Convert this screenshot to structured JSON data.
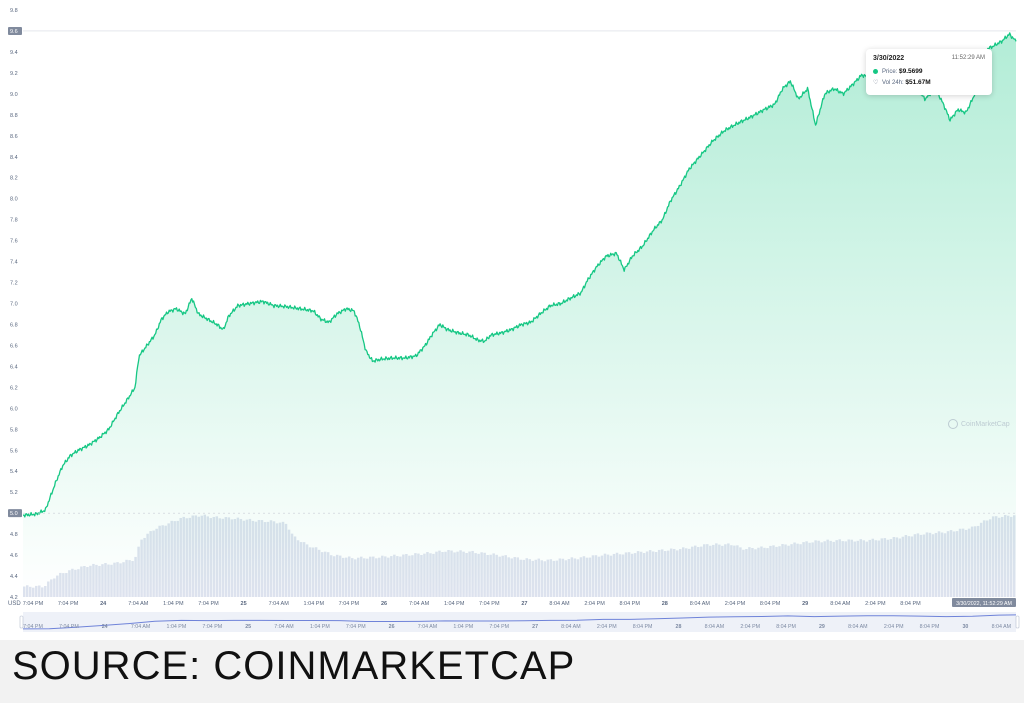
{
  "chart_data": {
    "type": "area",
    "currency_label": "USD",
    "price_axis": {
      "min": 4.2,
      "max": 9.8,
      "ticks": [
        "4.2",
        "4.4",
        "4.6",
        "4.8",
        "5.0",
        "5.2",
        "5.4",
        "5.6",
        "5.8",
        "6.0",
        "6.2",
        "6.4",
        "6.6",
        "6.8",
        "7.0",
        "7.2",
        "7.4",
        "7.6",
        "7.8",
        "8.0",
        "8.2",
        "8.4",
        "8.6",
        "8.8",
        "9.0",
        "9.2",
        "9.4",
        "9.6",
        "9.8"
      ],
      "start_marker": "5.0",
      "current_marker": "9.6"
    },
    "x_ticks": [
      "7:04 PM",
      "7:04 PM",
      "24",
      "7:04 AM",
      "1:04 PM",
      "7:04 PM",
      "25",
      "7:04 AM",
      "1:04 PM",
      "7:04 PM",
      "26",
      "7:04 AM",
      "1:04 PM",
      "7:04 PM",
      "27",
      "8:04 AM",
      "2:04 PM",
      "8:04 PM",
      "28",
      "8:04 AM",
      "2:04 PM",
      "8:04 PM",
      "29",
      "8:04 AM",
      "2:04 PM",
      "8:04 PM"
    ],
    "nav_ticks": [
      "7:04 PM",
      "7:04 PM",
      "24",
      "7:04 AM",
      "1:04 PM",
      "7:04 PM",
      "25",
      "7:04 AM",
      "1:04 PM",
      "7:04 PM",
      "26",
      "7:04 AM",
      "1:04 PM",
      "7:04 PM",
      "27",
      "8:04 AM",
      "2:04 PM",
      "8:04 PM",
      "28",
      "8:04 AM",
      "2:04 PM",
      "8:04 PM",
      "29",
      "8:04 AM",
      "2:04 PM",
      "8:04 PM",
      "30",
      "8:04 AM"
    ],
    "x_end_label": "3/30/2022, 11:52:29 AM",
    "price_series": [
      [
        0,
        4.98
      ],
      [
        1,
        4.99
      ],
      [
        1.7,
        5.03
      ],
      [
        2.5,
        5.3
      ],
      [
        3,
        5.45
      ],
      [
        3.6,
        5.55
      ],
      [
        4.2,
        5.6
      ],
      [
        5,
        5.65
      ],
      [
        5.8,
        5.72
      ],
      [
        6.5,
        5.8
      ],
      [
        7.2,
        5.95
      ],
      [
        8,
        6.1
      ],
      [
        8.5,
        6.2
      ],
      [
        8.8,
        6.5
      ],
      [
        9.4,
        6.6
      ],
      [
        10,
        6.7
      ],
      [
        10.5,
        6.85
      ],
      [
        11,
        6.92
      ],
      [
        11.6,
        6.95
      ],
      [
        12.3,
        6.9
      ],
      [
        12.8,
        7.05
      ],
      [
        13.3,
        6.9
      ],
      [
        14,
        6.85
      ],
      [
        14.7,
        6.8
      ],
      [
        15.2,
        6.75
      ],
      [
        15.6,
        6.88
      ],
      [
        16.3,
        6.98
      ],
      [
        17.2,
        7.0
      ],
      [
        18.2,
        7.02
      ],
      [
        19,
        6.98
      ],
      [
        20,
        6.97
      ],
      [
        21,
        6.95
      ],
      [
        22,
        6.93
      ],
      [
        22.6,
        6.85
      ],
      [
        23.2,
        6.82
      ],
      [
        23.8,
        6.9
      ],
      [
        24.5,
        6.95
      ],
      [
        25.1,
        6.93
      ],
      [
        25.5,
        6.8
      ],
      [
        26,
        6.55
      ],
      [
        26.5,
        6.45
      ],
      [
        27.2,
        6.47
      ],
      [
        28,
        6.48
      ],
      [
        29,
        6.48
      ],
      [
        29.8,
        6.5
      ],
      [
        30.5,
        6.6
      ],
      [
        31,
        6.7
      ],
      [
        31.6,
        6.8
      ],
      [
        32.2,
        6.75
      ],
      [
        33,
        6.72
      ],
      [
        33.8,
        6.7
      ],
      [
        34.5,
        6.65
      ],
      [
        35,
        6.64
      ],
      [
        35.5,
        6.7
      ],
      [
        36.3,
        6.72
      ],
      [
        37,
        6.75
      ],
      [
        37.8,
        6.8
      ],
      [
        38.5,
        6.82
      ],
      [
        39.2,
        6.9
      ],
      [
        40,
        6.98
      ],
      [
        40.8,
        7.0
      ],
      [
        41.5,
        7.05
      ],
      [
        42.3,
        7.1
      ],
      [
        42.8,
        7.22
      ],
      [
        43.5,
        7.35
      ],
      [
        44.2,
        7.45
      ],
      [
        45,
        7.48
      ],
      [
        45.6,
        7.32
      ],
      [
        46.2,
        7.45
      ],
      [
        47,
        7.55
      ],
      [
        47.8,
        7.7
      ],
      [
        48.5,
        7.8
      ],
      [
        49.1,
        7.98
      ],
      [
        49.8,
        8.12
      ],
      [
        50.5,
        8.28
      ],
      [
        51.3,
        8.4
      ],
      [
        52.3,
        8.55
      ],
      [
        53.2,
        8.65
      ],
      [
        54.2,
        8.72
      ],
      [
        55.2,
        8.78
      ],
      [
        56.2,
        8.85
      ],
      [
        57,
        8.9
      ],
      [
        57.6,
        9.05
      ],
      [
        58.2,
        9.12
      ],
      [
        58.8,
        8.95
      ],
      [
        59.5,
        9.05
      ],
      [
        60.1,
        8.7
      ],
      [
        60.8,
        9.0
      ],
      [
        61.5,
        9.05
      ],
      [
        62.2,
        9.0
      ],
      [
        63,
        9.1
      ],
      [
        63.6,
        9.18
      ],
      [
        64.5,
        9.15
      ],
      [
        65.3,
        9.2
      ],
      [
        66.3,
        9.15
      ],
      [
        67,
        9.18
      ],
      [
        67.8,
        9.05
      ],
      [
        68.4,
        8.95
      ],
      [
        69.2,
        9.05
      ],
      [
        69.8,
        8.9
      ],
      [
        70.3,
        8.75
      ],
      [
        70.9,
        8.85
      ],
      [
        71.5,
        8.82
      ],
      [
        72,
        8.95
      ],
      [
        72.5,
        9.1
      ],
      [
        73,
        9.42
      ],
      [
        73.5,
        9.45
      ],
      [
        74.2,
        9.5
      ],
      [
        74.8,
        9.57
      ],
      [
        75.3,
        9.5
      ]
    ],
    "volume_series": [
      [
        0,
        4.3
      ],
      [
        1.6,
        4.3
      ],
      [
        2.5,
        4.4
      ],
      [
        3.5,
        4.45
      ],
      [
        5,
        4.5
      ],
      [
        7,
        4.52
      ],
      [
        8.5,
        4.56
      ],
      [
        9,
        4.75
      ],
      [
        10,
        4.85
      ],
      [
        11,
        4.9
      ],
      [
        12,
        4.95
      ],
      [
        13.5,
        4.98
      ],
      [
        14.5,
        4.96
      ],
      [
        16,
        4.95
      ],
      [
        17.5,
        4.93
      ],
      [
        19,
        4.92
      ],
      [
        20,
        4.9
      ],
      [
        20.5,
        4.78
      ],
      [
        21.5,
        4.7
      ],
      [
        22.5,
        4.65
      ],
      [
        23.5,
        4.6
      ],
      [
        25,
        4.57
      ],
      [
        27,
        4.58
      ],
      [
        29,
        4.6
      ],
      [
        31,
        4.62
      ],
      [
        32,
        4.64
      ],
      [
        34,
        4.63
      ],
      [
        36,
        4.6
      ],
      [
        38,
        4.56
      ],
      [
        40,
        4.55
      ],
      [
        42,
        4.57
      ],
      [
        44,
        4.6
      ],
      [
        46,
        4.62
      ],
      [
        48,
        4.64
      ],
      [
        50,
        4.66
      ],
      [
        52,
        4.7
      ],
      [
        54,
        4.7
      ],
      [
        54.5,
        4.66
      ],
      [
        56,
        4.67
      ],
      [
        58,
        4.7
      ],
      [
        60,
        4.73
      ],
      [
        62,
        4.74
      ],
      [
        64,
        4.74
      ],
      [
        66,
        4.76
      ],
      [
        68,
        4.8
      ],
      [
        70,
        4.82
      ],
      [
        72,
        4.86
      ],
      [
        73.5,
        4.96
      ],
      [
        75.3,
        4.98
      ]
    ],
    "nav_series": [
      [
        0,
        3.0
      ],
      [
        2,
        3.1
      ],
      [
        4,
        3.8
      ],
      [
        6,
        4.6
      ],
      [
        8,
        5.5
      ],
      [
        10,
        6.6
      ],
      [
        12,
        7.0
      ],
      [
        14,
        6.9
      ],
      [
        16,
        7.0
      ],
      [
        18,
        7.0
      ],
      [
        20,
        6.97
      ],
      [
        22,
        6.93
      ],
      [
        24,
        6.9
      ],
      [
        26,
        6.5
      ],
      [
        28,
        6.48
      ],
      [
        30,
        6.55
      ],
      [
        32,
        6.75
      ],
      [
        34,
        6.7
      ],
      [
        36,
        6.72
      ],
      [
        38,
        6.82
      ],
      [
        40,
        6.98
      ],
      [
        42,
        7.1
      ],
      [
        44,
        7.45
      ],
      [
        46,
        7.45
      ],
      [
        48,
        7.8
      ],
      [
        50,
        8.12
      ],
      [
        52,
        8.55
      ],
      [
        54,
        8.72
      ],
      [
        56,
        8.85
      ],
      [
        58,
        9.12
      ],
      [
        60,
        8.8
      ],
      [
        62,
        9.0
      ],
      [
        64,
        9.15
      ],
      [
        66,
        9.15
      ],
      [
        68,
        9.0
      ],
      [
        70,
        8.8
      ],
      [
        72,
        8.95
      ],
      [
        74,
        9.5
      ],
      [
        75.3,
        9.57
      ]
    ]
  },
  "tooltip": {
    "date": "3/30/2022",
    "time": "11:52:29 AM",
    "price_label": "Price:",
    "price_value": "$9.5699",
    "vol_label": "Vol 24h:",
    "vol_value": "$51.67M"
  },
  "watermark": "CoinMarketCap",
  "source_text": "SOURCE: COINMARKETCAP",
  "colors": {
    "line": "#16c784",
    "area_top": "#16c784",
    "volume": "#dde2ee",
    "nav_line": "#6f83d9",
    "marker_bg": "#808a9d"
  }
}
